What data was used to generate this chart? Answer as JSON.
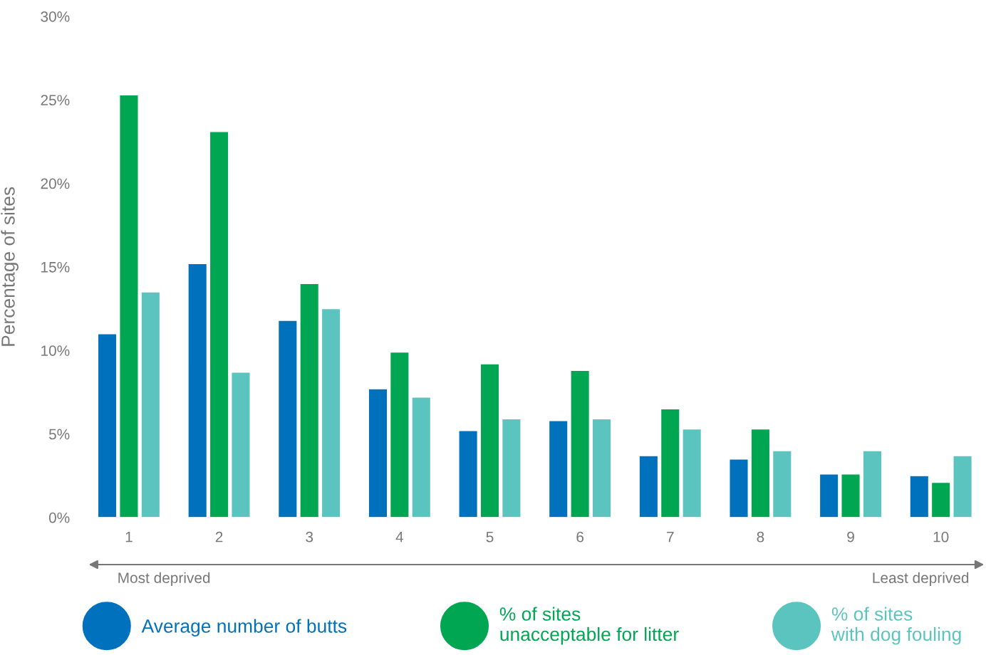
{
  "chart_data": {
    "type": "bar",
    "ylabel": "Percentage of sites",
    "categories": [
      "1",
      "2",
      "3",
      "4",
      "5",
      "6",
      "7",
      "8",
      "9",
      "10"
    ],
    "series": [
      {
        "name": "Average number of butts",
        "color": "#0071bc",
        "values": [
          11.0,
          15.2,
          11.8,
          7.7,
          5.2,
          5.8,
          3.7,
          3.5,
          2.6,
          2.5
        ]
      },
      {
        "name": "% of sites\nunacceptable for litter",
        "color": "#00a651",
        "values": [
          25.3,
          23.1,
          14.0,
          9.9,
          9.2,
          8.8,
          6.5,
          5.3,
          2.6,
          2.1
        ]
      },
      {
        "name": "% of sites\nwith dog fouling",
        "color": "#5bc4bf",
        "values": [
          13.5,
          8.7,
          12.5,
          7.2,
          5.9,
          5.9,
          5.3,
          4.0,
          4.0,
          3.7
        ]
      }
    ],
    "ylim": [
      0,
      30
    ],
    "yticks": [
      {
        "value": 0,
        "label": "0%"
      },
      {
        "value": 5,
        "label": "5%"
      },
      {
        "value": 10,
        "label": "10%"
      },
      {
        "value": 15,
        "label": "15%"
      },
      {
        "value": 20,
        "label": "20%"
      },
      {
        "value": 25,
        "label": "25%"
      },
      {
        "value": 30,
        "label": "30%"
      }
    ],
    "annotations": [
      "Most deprived",
      "Least deprived"
    ],
    "legend": "bottom",
    "grid": false
  }
}
